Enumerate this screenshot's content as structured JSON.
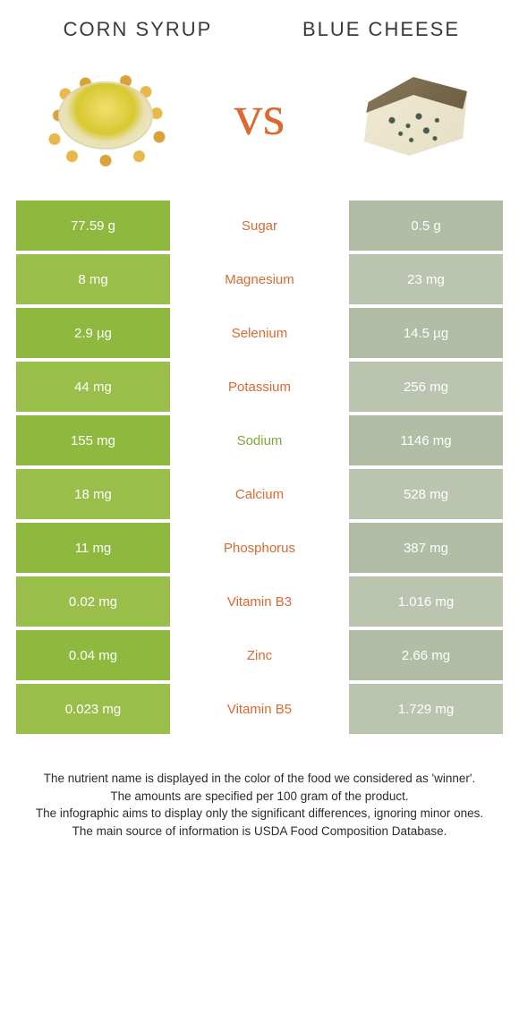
{
  "left_food": {
    "name": "CORN SYRUP",
    "color_primary": "#8fb93e",
    "color_alt": "#99bf4a"
  },
  "right_food": {
    "name": "BLUE CHEESE",
    "color_primary": "#b1bda5",
    "color_alt": "#bac4af"
  },
  "vs_label": "vs",
  "vs_color": "#d96a32",
  "title_color": "#3a3a3a",
  "label_green": "#7fa536",
  "label_orange": "#d96a32",
  "rows": [
    {
      "nutrient": "Sugar",
      "left": "77.59 g",
      "right": "0.5 g",
      "winner": "right"
    },
    {
      "nutrient": "Magnesium",
      "left": "8 mg",
      "right": "23 mg",
      "winner": "right"
    },
    {
      "nutrient": "Selenium",
      "left": "2.9 µg",
      "right": "14.5 µg",
      "winner": "right"
    },
    {
      "nutrient": "Potassium",
      "left": "44 mg",
      "right": "256 mg",
      "winner": "right"
    },
    {
      "nutrient": "Sodium",
      "left": "155 mg",
      "right": "1146 mg",
      "winner": "left"
    },
    {
      "nutrient": "Calcium",
      "left": "18 mg",
      "right": "528 mg",
      "winner": "right"
    },
    {
      "nutrient": "Phosphorus",
      "left": "11 mg",
      "right": "387 mg",
      "winner": "right"
    },
    {
      "nutrient": "Vitamin B3",
      "left": "0.02 mg",
      "right": "1.016 mg",
      "winner": "right"
    },
    {
      "nutrient": "Zinc",
      "left": "0.04 mg",
      "right": "2.66 mg",
      "winner": "right"
    },
    {
      "nutrient": "Vitamin B5",
      "left": "0.023 mg",
      "right": "1.729 mg",
      "winner": "right"
    }
  ],
  "footnotes": [
    "The nutrient name is displayed in the color of the food we considered as 'winner'.",
    "The amounts are specified per 100 gram of the product.",
    "The infographic aims to display only the significant differences, ignoring minor ones.",
    "The main source of information is USDA Food Composition Database."
  ]
}
